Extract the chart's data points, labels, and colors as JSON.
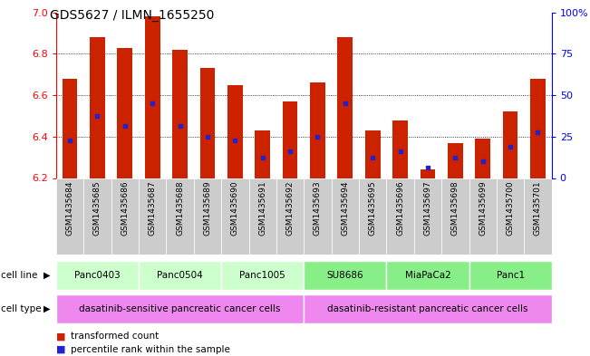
{
  "title": "GDS5627 / ILMN_1655250",
  "samples": [
    "GSM1435684",
    "GSM1435685",
    "GSM1435686",
    "GSM1435687",
    "GSM1435688",
    "GSM1435689",
    "GSM1435690",
    "GSM1435691",
    "GSM1435692",
    "GSM1435693",
    "GSM1435694",
    "GSM1435695",
    "GSM1435696",
    "GSM1435697",
    "GSM1435698",
    "GSM1435699",
    "GSM1435700",
    "GSM1435701"
  ],
  "bar_values": [
    6.68,
    6.88,
    6.83,
    6.98,
    6.82,
    6.73,
    6.65,
    6.43,
    6.57,
    6.66,
    6.88,
    6.43,
    6.48,
    6.24,
    6.37,
    6.39,
    6.52,
    6.68
  ],
  "blue_dot_values": [
    6.38,
    6.5,
    6.45,
    6.56,
    6.45,
    6.4,
    6.38,
    6.3,
    6.33,
    6.4,
    6.56,
    6.3,
    6.33,
    6.25,
    6.3,
    6.28,
    6.35,
    6.42
  ],
  "ymin": 6.2,
  "ymax": 7.0,
  "yticks": [
    6.2,
    6.4,
    6.6,
    6.8,
    7.0
  ],
  "right_yticks": [
    0,
    25,
    50,
    75,
    100
  ],
  "bar_color": "#cc2200",
  "blue_color": "#2222cc",
  "cell_lines": [
    {
      "label": "Panc0403",
      "start": 0,
      "end": 3
    },
    {
      "label": "Panc0504",
      "start": 3,
      "end": 6
    },
    {
      "label": "Panc1005",
      "start": 6,
      "end": 9
    },
    {
      "label": "SU8686",
      "start": 9,
      "end": 12
    },
    {
      "label": "MiaPaCa2",
      "start": 12,
      "end": 15
    },
    {
      "label": "Panc1",
      "start": 15,
      "end": 18
    }
  ],
  "cell_line_colors_sensitive": "#ccffcc",
  "cell_line_colors_resistant": "#88ee88",
  "cell_types": [
    {
      "label": "dasatinib-sensitive pancreatic cancer cells",
      "start": 0,
      "end": 9
    },
    {
      "label": "dasatinib-resistant pancreatic cancer cells",
      "start": 9,
      "end": 18
    }
  ],
  "cell_type_color": "#ee88ee",
  "legend_red_label": "transformed count",
  "legend_blue_label": "percentile rank within the sample",
  "bar_width": 0.55
}
